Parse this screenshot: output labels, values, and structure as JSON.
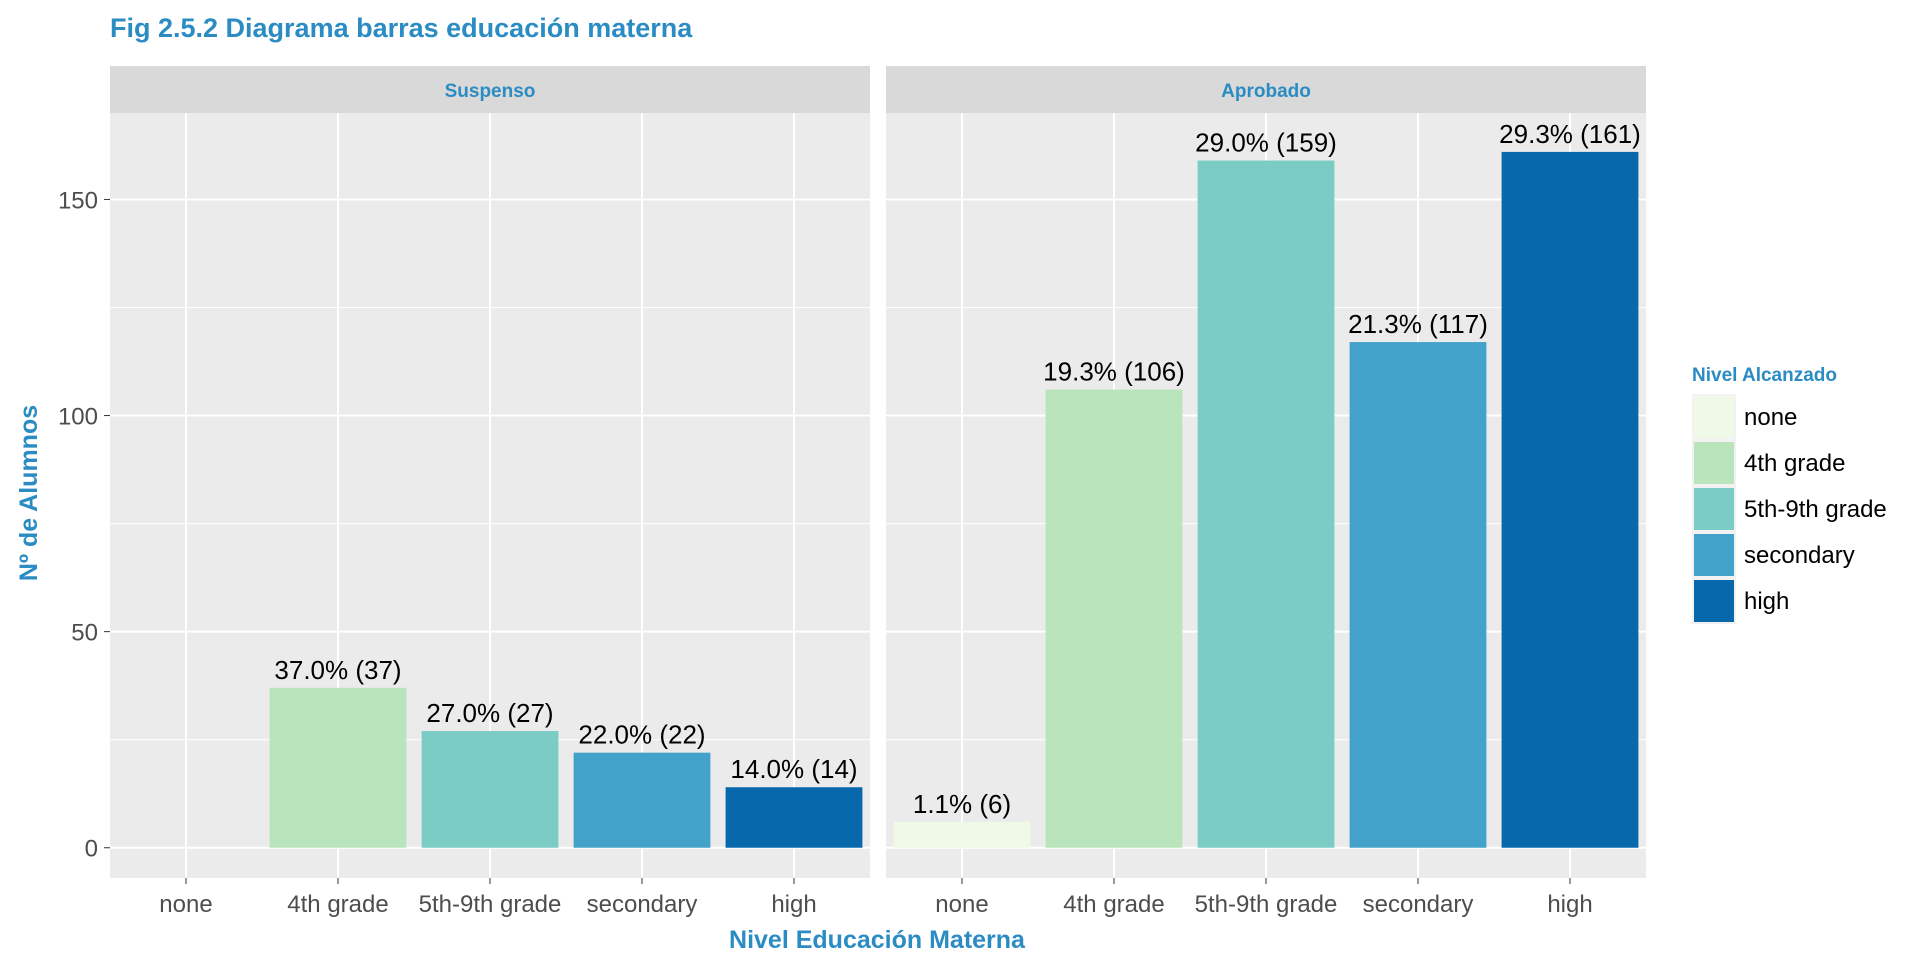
{
  "chart_data": {
    "type": "bar",
    "title": "Fig 2.5.2 Diagrama barras educación materna",
    "xlabel": "Nivel Educación Materna",
    "ylabel": "Nº de Alumnos",
    "ylim": [
      -7,
      170
    ],
    "yticks": [
      0,
      50,
      100,
      150
    ],
    "grid": true,
    "legend": {
      "title": "Nivel Alcanzado",
      "position": "right",
      "entries": [
        {
          "label": "none",
          "color": "#f0f9e8"
        },
        {
          "label": "4th grade",
          "color": "#bae4bc"
        },
        {
          "label": "5th-9th grade",
          "color": "#7bccc4"
        },
        {
          "label": "secondary",
          "color": "#43a2ca"
        },
        {
          "label": "high",
          "color": "#0868ac"
        }
      ]
    },
    "categories": [
      "none",
      "4th grade",
      "5th-9th grade",
      "secondary",
      "high"
    ],
    "facets": [
      {
        "name": "Suspenso",
        "values": [
          0,
          37,
          27,
          22,
          14
        ],
        "labels": [
          "",
          "37.0% (37)",
          "27.0% (27)",
          "22.0% (22)",
          "14.0% (14)"
        ]
      },
      {
        "name": "Aprobado",
        "values": [
          6,
          106,
          159,
          117,
          161
        ],
        "labels": [
          "1.1% (6)",
          "19.3% (106)",
          "29.0% (159)",
          "21.3% (117)",
          "29.3% (161)"
        ]
      }
    ],
    "colors": {
      "title": "#2b8cc4",
      "panel_bg": "#ebebeb",
      "strip_bg": "#d9d9d9",
      "grid": "#ffffff",
      "tick_text": "#4d4d4d"
    }
  }
}
